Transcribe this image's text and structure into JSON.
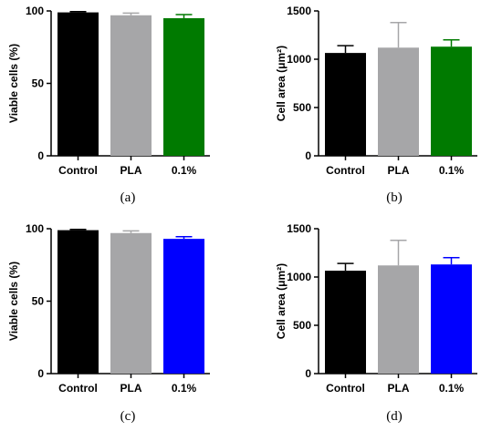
{
  "chart_data": [
    {
      "type": "bar",
      "panel_label": "(a)",
      "categories": [
        "Control",
        "PLA",
        "0.1%"
      ],
      "values": [
        99,
        97,
        95
      ],
      "errors": [
        0.5,
        1.5,
        2.5
      ],
      "colors": [
        "#000000",
        "#a6a6a8",
        "#007a00"
      ],
      "ylabel": "Viable cells (%)",
      "ylim": [
        0,
        100
      ],
      "yticks": [
        0,
        50,
        100
      ],
      "ytick_labels": [
        "0",
        "50",
        "100"
      ]
    },
    {
      "type": "bar",
      "panel_label": "(b)",
      "categories": [
        "Control",
        "PLA",
        "0.1%"
      ],
      "values": [
        1065,
        1120,
        1130
      ],
      "errors": [
        75,
        260,
        70
      ],
      "colors": [
        "#000000",
        "#a6a6a8",
        "#007a00"
      ],
      "ylabel": "Cell area (μm²)",
      "ylim": [
        0,
        1500
      ],
      "yticks": [
        0,
        500,
        1000,
        1500
      ],
      "ytick_labels": [
        "0",
        "500",
        "1000",
        "1500"
      ]
    },
    {
      "type": "bar",
      "panel_label": "(c)",
      "categories": [
        "Control",
        "PLA",
        "0.1%"
      ],
      "values": [
        99,
        97,
        93
      ],
      "errors": [
        0.5,
        1.5,
        1.5
      ],
      "colors": [
        "#000000",
        "#a6a6a8",
        "#0000ff"
      ],
      "ylabel": "Viable cells (%)",
      "ylim": [
        0,
        100
      ],
      "yticks": [
        0,
        50,
        100
      ],
      "ytick_labels": [
        "0",
        "50",
        "100"
      ]
    },
    {
      "type": "bar",
      "panel_label": "(d)",
      "categories": [
        "Control",
        "PLA",
        "0.1%"
      ],
      "values": [
        1065,
        1120,
        1130
      ],
      "errors": [
        75,
        260,
        70
      ],
      "colors": [
        "#000000",
        "#a6a6a8",
        "#0000ff"
      ],
      "ylabel": "Cell area (μm²)",
      "ylim": [
        0,
        1500
      ],
      "yticks": [
        0,
        500,
        1000,
        1500
      ],
      "ytick_labels": [
        "0",
        "500",
        "1000",
        "1500"
      ]
    }
  ]
}
